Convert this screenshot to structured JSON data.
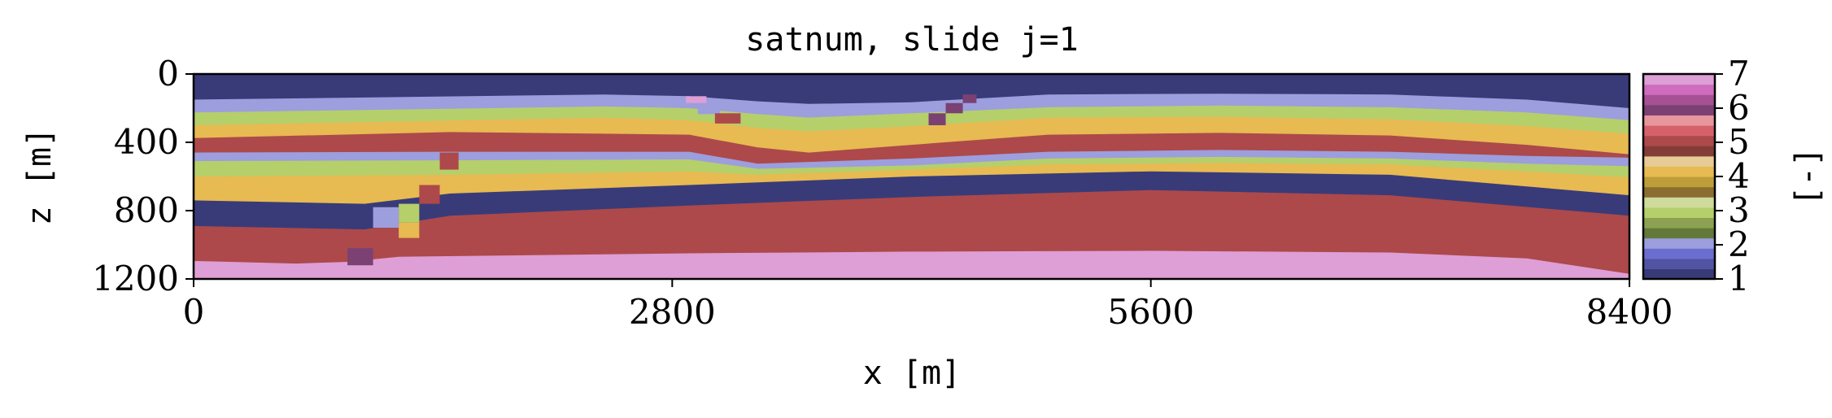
{
  "chart_data": {
    "type": "heatmap",
    "title": "satnum, slide j=1",
    "xlabel": "x [m]",
    "ylabel": "z [m]",
    "colorbar_label": "[-]",
    "xlim": [
      0,
      8400
    ],
    "ylim": [
      1200,
      0
    ],
    "xticks": [
      "0",
      "2800",
      "5600",
      "8400"
    ],
    "yticks": [
      "0",
      "400",
      "800",
      "1200"
    ],
    "colorbar_ticks": [
      "1",
      "2",
      "3",
      "4",
      "5",
      "6",
      "7"
    ],
    "colorbar_range": [
      1,
      7
    ],
    "colormap": "tab20b",
    "layers": [
      {
        "value": 1.0,
        "color": "#393b79",
        "top": [
          [
            0,
            0
          ],
          [
            8400,
            0
          ]
        ]
      },
      {
        "value": 2.0,
        "color": "#9c9ede",
        "top": [
          [
            0,
            150
          ],
          [
            2400,
            120
          ],
          [
            2900,
            130
          ],
          [
            3300,
            160
          ],
          [
            3600,
            175
          ],
          [
            4200,
            165
          ],
          [
            5000,
            120
          ],
          [
            6000,
            115
          ],
          [
            7000,
            120
          ],
          [
            7800,
            150
          ],
          [
            8400,
            200
          ]
        ]
      },
      {
        "value": 3.0,
        "color": "#b5cf6b",
        "top": [
          [
            0,
            225
          ],
          [
            2400,
            190
          ],
          [
            2900,
            200
          ],
          [
            3300,
            235
          ],
          [
            3600,
            255
          ],
          [
            4200,
            230
          ],
          [
            5000,
            195
          ],
          [
            6000,
            185
          ],
          [
            7000,
            195
          ],
          [
            7800,
            225
          ],
          [
            8400,
            270
          ]
        ]
      },
      {
        "value": 4.0,
        "color": "#e7ba52",
        "top": [
          [
            0,
            300
          ],
          [
            2400,
            255
          ],
          [
            2900,
            270
          ],
          [
            3300,
            315
          ],
          [
            3600,
            335
          ],
          [
            4200,
            305
          ],
          [
            5000,
            255
          ],
          [
            6000,
            250
          ],
          [
            7000,
            265
          ],
          [
            7800,
            305
          ],
          [
            8400,
            350
          ]
        ]
      },
      {
        "value": 5.0,
        "color": "#ad494a",
        "top": [
          [
            0,
            375
          ],
          [
            1500,
            340
          ],
          [
            2900,
            355
          ],
          [
            3300,
            430
          ],
          [
            3600,
            460
          ],
          [
            4200,
            415
          ],
          [
            5000,
            355
          ],
          [
            6000,
            345
          ],
          [
            7000,
            360
          ],
          [
            7800,
            415
          ],
          [
            8400,
            470
          ]
        ]
      },
      {
        "value": 2.0,
        "color": "#9c9ede",
        "top": [
          [
            0,
            460
          ],
          [
            1500,
            455
          ],
          [
            2900,
            455
          ],
          [
            3300,
            525
          ],
          [
            4200,
            495
          ],
          [
            5000,
            455
          ],
          [
            6000,
            445
          ],
          [
            7000,
            455
          ],
          [
            7800,
            480
          ],
          [
            8400,
            490
          ]
        ]
      },
      {
        "value": 3.0,
        "color": "#b5cf6b",
        "top": [
          [
            0,
            510
          ],
          [
            1500,
            505
          ],
          [
            2900,
            500
          ],
          [
            3300,
            555
          ],
          [
            4200,
            535
          ],
          [
            5000,
            495
          ],
          [
            6000,
            485
          ],
          [
            7000,
            495
          ],
          [
            7800,
            525
          ],
          [
            8400,
            540
          ]
        ]
      },
      {
        "value": 4.0,
        "color": "#e7ba52",
        "top": [
          [
            0,
            600
          ],
          [
            1500,
            590
          ],
          [
            2900,
            570
          ],
          [
            3300,
            590
          ],
          [
            4200,
            560
          ],
          [
            5000,
            530
          ],
          [
            6000,
            520
          ],
          [
            7000,
            530
          ],
          [
            7800,
            570
          ],
          [
            8400,
            605
          ]
        ]
      },
      {
        "value": 1.0,
        "color": "#393b79",
        "top": [
          [
            0,
            740
          ],
          [
            1000,
            760
          ],
          [
            1500,
            700
          ],
          [
            2900,
            650
          ],
          [
            4200,
            600
          ],
          [
            5600,
            570
          ],
          [
            7000,
            590
          ],
          [
            8400,
            710
          ]
        ]
      },
      {
        "value": 5.0,
        "color": "#ad494a",
        "top": [
          [
            0,
            890
          ],
          [
            1000,
            910
          ],
          [
            1500,
            830
          ],
          [
            2900,
            770
          ],
          [
            4200,
            720
          ],
          [
            5600,
            680
          ],
          [
            7000,
            710
          ],
          [
            8400,
            830
          ]
        ]
      },
      {
        "value": 7.0,
        "color": "#de9ed6",
        "top": [
          [
            0,
            1095
          ],
          [
            600,
            1110
          ],
          [
            900,
            1100
          ],
          [
            1200,
            1070
          ],
          [
            2900,
            1050
          ],
          [
            4200,
            1040
          ],
          [
            5600,
            1035
          ],
          [
            7000,
            1045
          ],
          [
            7800,
            1080
          ],
          [
            8400,
            1170
          ]
        ]
      }
    ],
    "fault_blocks": [
      {
        "value": 2.0,
        "color": "#9c9ede",
        "x": [
          1050,
          1200
        ],
        "z": [
          780,
          900
        ]
      },
      {
        "value": 3.0,
        "color": "#b5cf6b",
        "x": [
          1200,
          1320
        ],
        "z": [
          760,
          870
        ]
      },
      {
        "value": 4.0,
        "color": "#e7ba52",
        "x": [
          1200,
          1320
        ],
        "z": [
          870,
          960
        ]
      },
      {
        "value": 5.0,
        "color": "#ad494a",
        "x": [
          1320,
          1440
        ],
        "z": [
          650,
          760
        ]
      },
      {
        "value": 5.0,
        "color": "#ad494a",
        "x": [
          1440,
          1550
        ],
        "z": [
          460,
          560
        ]
      },
      {
        "value": 6.0,
        "color": "#7b4173",
        "x": [
          900,
          1050
        ],
        "z": [
          1020,
          1120
        ]
      },
      {
        "value": 7.0,
        "color": "#de9ed6",
        "x": [
          2880,
          3000
        ],
        "z": [
          130,
          170
        ]
      },
      {
        "value": 2.0,
        "color": "#9c9ede",
        "x": [
          2950,
          3080
        ],
        "z": [
          170,
          235
        ]
      },
      {
        "value": 5.0,
        "color": "#ad494a",
        "x": [
          3050,
          3200
        ],
        "z": [
          230,
          290
        ]
      },
      {
        "value": 6.0,
        "color": "#7b4173",
        "x": [
          4300,
          4400
        ],
        "z": [
          230,
          300
        ]
      },
      {
        "value": 6.0,
        "color": "#7b4173",
        "x": [
          4400,
          4500
        ],
        "z": [
          170,
          230
        ]
      },
      {
        "value": 6.0,
        "color": "#7b4173",
        "x": [
          4500,
          4580
        ],
        "z": [
          120,
          170
        ]
      },
      {
        "value": 5.0,
        "color": "#ad494a",
        "x": [
          3350,
          3500
        ],
        "z": [
          460,
          510
        ]
      }
    ]
  }
}
